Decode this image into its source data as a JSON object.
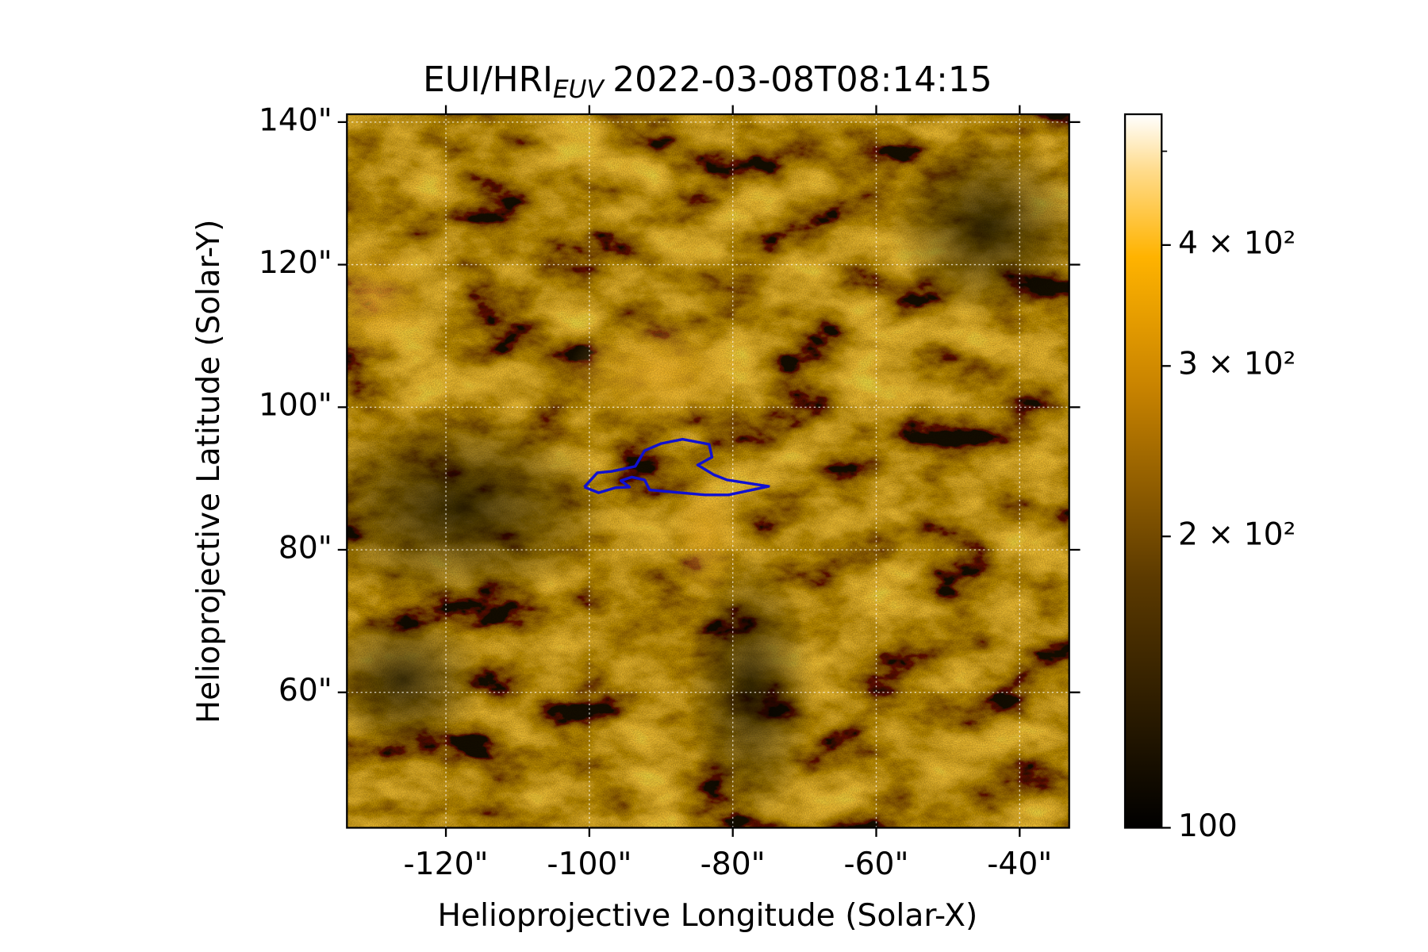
{
  "chart_data": {
    "type": "image",
    "title_prefix": "EUI/HRI",
    "title_subscript": "EUV",
    "title_suffix": "2022-03-08T08:14:15",
    "xlabel": "Helioprojective Longitude (Solar-X)",
    "ylabel": "Helioprojective Latitude (Solar-Y)",
    "xlim": [
      -133.8,
      -33.1
    ],
    "ylim": [
      41.0,
      141.1
    ],
    "xticks": [
      {
        "value": -120,
        "label": "-120\""
      },
      {
        "value": -100,
        "label": "-100\""
      },
      {
        "value": -80,
        "label": "-80\""
      },
      {
        "value": -60,
        "label": "-60\""
      },
      {
        "value": -40,
        "label": "-40\""
      }
    ],
    "yticks": [
      {
        "value": 60,
        "label": "60\""
      },
      {
        "value": 80,
        "label": "80\""
      },
      {
        "value": 100,
        "label": "100\""
      },
      {
        "value": 120,
        "label": "120\""
      },
      {
        "value": 140,
        "label": "140\""
      }
    ],
    "grid": true,
    "colorbar": {
      "scale": "log",
      "clim": [
        100,
        546
      ],
      "ticks": [
        {
          "value": 100,
          "label": "100"
        },
        {
          "value": 200,
          "label": "2 × 10²"
        },
        {
          "value": 300,
          "label": "3 × 10²"
        },
        {
          "value": 400,
          "label": "4 × 10²"
        }
      ],
      "minor_ticks": [
        500
      ]
    },
    "contour": {
      "color": "#1010d0",
      "x": [
        -100.7,
        -98.9,
        -96.9,
        -93.6,
        -92.3,
        -90.0,
        -87.0,
        -83.3,
        -82.9,
        -84.9,
        -82.6,
        -80.8,
        -75.0,
        -80.6,
        -83.9,
        -91.6,
        -92.3,
        -94.1,
        -95.6,
        -94.4,
        -96.4,
        -98.7,
        -100.7
      ],
      "y": [
        88.8,
        90.8,
        91.0,
        91.7,
        93.9,
        94.9,
        95.5,
        94.8,
        93.0,
        91.9,
        90.5,
        89.8,
        88.9,
        87.7,
        87.7,
        88.4,
        89.8,
        90.2,
        89.7,
        88.8,
        88.7,
        88.0,
        88.8
      ]
    }
  }
}
